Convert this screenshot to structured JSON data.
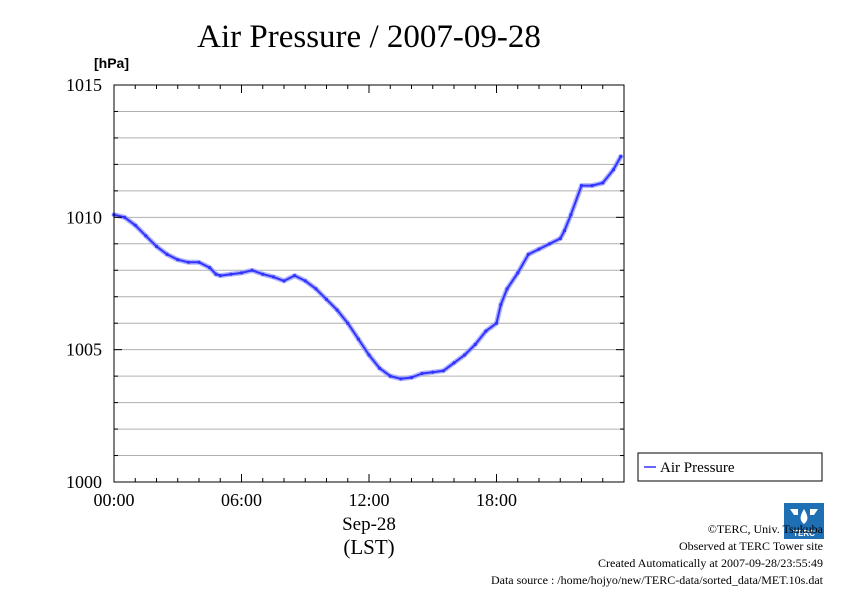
{
  "chart_data": {
    "type": "line",
    "title": "Air Pressure / 2007-09-28",
    "ylabel": "[hPa]",
    "xlabel": "Sep-28",
    "xlabel_sub": "(LST)",
    "ylim": [
      1000,
      1015
    ],
    "xlim": [
      0,
      24
    ],
    "yticks": [
      "1000",
      "1005",
      "1010",
      "1015"
    ],
    "xticks": [
      {
        "value": 0,
        "label": "00:00"
      },
      {
        "value": 6,
        "label": "06:00"
      },
      {
        "value": 12,
        "label": "12:00"
      },
      {
        "value": 18,
        "label": "18:00"
      }
    ],
    "grid": true,
    "legend_position": "right",
    "series": [
      {
        "name": "Air Pressure",
        "color": "#3333ff",
        "x": [
          0,
          0.5,
          1,
          1.5,
          2,
          2.5,
          3,
          3.5,
          4,
          4.5,
          4.8,
          5,
          5.5,
          6,
          6.5,
          7,
          7.5,
          8,
          8.5,
          9,
          9.5,
          10,
          10.5,
          11,
          11.5,
          12,
          12.5,
          13,
          13.5,
          14,
          14.5,
          15,
          15.5,
          16,
          16.5,
          17,
          17.5,
          18,
          18.2,
          18.5,
          19,
          19.5,
          20,
          20.5,
          21,
          21.2,
          21.5,
          22,
          22.5,
          23,
          23.5,
          23.85
        ],
        "y": [
          1010.1,
          1010.0,
          1009.7,
          1009.3,
          1008.9,
          1008.6,
          1008.4,
          1008.3,
          1008.3,
          1008.1,
          1007.85,
          1007.8,
          1007.85,
          1007.9,
          1008.0,
          1007.85,
          1007.75,
          1007.6,
          1007.8,
          1007.6,
          1007.3,
          1006.9,
          1006.5,
          1006.0,
          1005.4,
          1004.8,
          1004.3,
          1004.0,
          1003.9,
          1003.95,
          1004.1,
          1004.15,
          1004.2,
          1004.5,
          1004.8,
          1005.2,
          1005.7,
          1006.0,
          1006.7,
          1007.3,
          1007.9,
          1008.6,
          1008.8,
          1009.0,
          1009.2,
          1009.5,
          1010.1,
          1011.2,
          1011.2,
          1011.3,
          1011.8,
          1012.3
        ]
      }
    ]
  },
  "credits": {
    "copyright": "©TERC, Univ. Tsukuba",
    "observed": "Observed at TERC Tower site",
    "created": "Created Automatically at 2007-09-28/23:55:49",
    "source": "Data source : /home/hojyo/new/TERC-data/sorted_data/MET.10s.dat",
    "logo_text": "TERC"
  }
}
